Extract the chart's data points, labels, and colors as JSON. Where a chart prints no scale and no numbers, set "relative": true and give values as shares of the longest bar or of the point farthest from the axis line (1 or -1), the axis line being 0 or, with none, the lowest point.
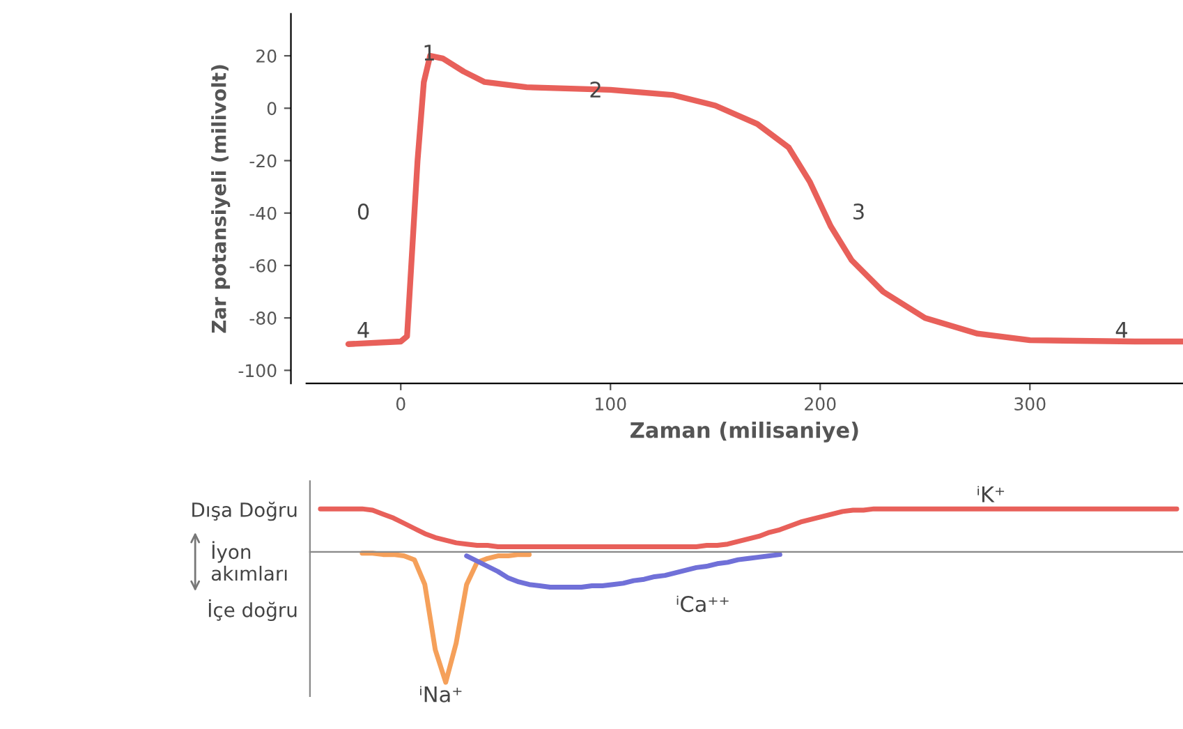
{
  "chart_data": [
    {
      "type": "line",
      "ylabel": "Zar potansiyeli (milivolt)",
      "xlabel": "Zaman (milisaniye)",
      "xlim": [
        -45,
        373
      ],
      "ylim": [
        -105,
        36
      ],
      "xticks": [
        0,
        100,
        200,
        300
      ],
      "yticks": [
        20,
        0,
        -20,
        -40,
        -60,
        -80,
        -100
      ],
      "grid": false,
      "legend": false,
      "series": [
        {
          "color": "#e8605a",
          "x": [
            -25,
            0,
            3,
            5,
            8,
            11,
            14,
            20,
            30,
            40,
            60,
            100,
            130,
            150,
            170,
            185,
            195,
            205,
            215,
            230,
            250,
            275,
            300,
            350,
            373
          ],
          "values": [
            -90,
            -89,
            -87,
            -60,
            -20,
            10,
            20,
            19,
            14,
            10,
            8,
            7,
            5,
            1,
            -6,
            -15,
            -28,
            -45,
            -58,
            -70,
            -80,
            -86,
            -88.5,
            -89,
            -89
          ]
        }
      ],
      "annotations": [
        "0",
        "1",
        "2",
        "3",
        "4",
        "4"
      ]
    },
    {
      "type": "line",
      "relative": true,
      "legend": false,
      "categories": [
        null,
        null,
        null,
        null,
        null,
        null,
        null,
        null,
        null,
        null,
        null,
        null,
        null,
        null,
        null,
        null,
        null,
        null,
        null,
        null,
        null,
        null,
        null,
        null,
        null,
        null,
        null,
        null,
        null,
        null,
        null,
        null,
        null,
        null,
        null,
        null,
        null,
        null,
        null,
        null,
        null,
        null,
        null,
        null,
        null,
        null,
        null,
        null,
        null,
        null,
        null,
        null,
        null,
        null,
        null,
        null,
        null,
        null,
        null,
        null,
        null,
        null,
        null,
        null,
        null,
        null,
        null,
        null,
        null,
        null,
        null,
        null,
        null,
        null,
        null,
        null,
        null,
        null,
        null,
        null,
        null,
        null,
        null
      ],
      "series": [
        {
          "name": "ⁱK⁺",
          "color": "#e8605a",
          "values": [
            0.33,
            0.33,
            0.33,
            0.33,
            0.33,
            0.32,
            0.29,
            0.26,
            0.22,
            0.18,
            0.14,
            0.11,
            0.09,
            0.07,
            0.06,
            0.05,
            0.05,
            0.04,
            0.04,
            0.04,
            0.04,
            0.04,
            0.04,
            0.04,
            0.04,
            0.04,
            0.04,
            0.04,
            0.04,
            0.04,
            0.04,
            0.04,
            0.04,
            0.04,
            0.04,
            0.04,
            0.04,
            0.05,
            0.05,
            0.06,
            0.08,
            0.1,
            0.12,
            0.15,
            0.17,
            0.2,
            0.23,
            0.25,
            0.27,
            0.29,
            0.31,
            0.32,
            0.32,
            0.33,
            0.33,
            0.33,
            0.33,
            0.33,
            0.33,
            0.33,
            0.33,
            0.33,
            0.33,
            0.33,
            0.33,
            0.33,
            0.33,
            0.33,
            0.33,
            0.33,
            0.33,
            0.33,
            0.33,
            0.33,
            0.33,
            0.33,
            0.33,
            0.33,
            0.33,
            0.33,
            0.33,
            0.33,
            0.33
          ]
        },
        {
          "name": "ⁱNa⁺",
          "color": "#f5a05a",
          "values": [
            null,
            null,
            null,
            null,
            -0.01,
            -0.01,
            -0.02,
            -0.02,
            -0.03,
            -0.06,
            -0.25,
            -0.75,
            -1,
            -0.7,
            -0.25,
            -0.08,
            -0.05,
            -0.03,
            -0.03,
            -0.02,
            -0.02,
            null,
            null,
            null,
            null,
            null,
            null,
            null,
            null,
            null,
            null,
            null,
            null,
            null,
            null,
            null,
            null,
            null,
            null,
            null,
            null,
            null,
            null,
            null,
            null,
            null,
            null,
            null,
            null,
            null,
            null,
            null,
            null,
            null,
            null,
            null,
            null,
            null,
            null,
            null,
            null,
            null,
            null,
            null,
            null,
            null,
            null,
            null,
            null,
            null,
            null,
            null,
            null,
            null,
            null,
            null,
            null,
            null,
            null,
            null,
            null,
            null,
            null
          ]
        },
        {
          "name": "ⁱCa⁺⁺",
          "color": "#7070d8",
          "values": [
            null,
            null,
            null,
            null,
            null,
            null,
            null,
            null,
            null,
            null,
            null,
            null,
            null,
            null,
            -0.03,
            -0.07,
            -0.11,
            -0.15,
            -0.2,
            -0.23,
            -0.25,
            -0.26,
            -0.27,
            -0.27,
            -0.27,
            -0.27,
            -0.26,
            -0.26,
            -0.25,
            -0.24,
            -0.22,
            -0.21,
            -0.19,
            -0.18,
            -0.16,
            -0.14,
            -0.12,
            -0.11,
            -0.09,
            -0.08,
            -0.06,
            -0.05,
            -0.04,
            -0.03,
            -0.02,
            null,
            null,
            null,
            null,
            null,
            null,
            null,
            null,
            null,
            null,
            null,
            null,
            null,
            null,
            null,
            null,
            null,
            null,
            null,
            null,
            null,
            null,
            null,
            null,
            null,
            null,
            null,
            null,
            null,
            null,
            null,
            null,
            null,
            null,
            null,
            null,
            null,
            null
          ]
        }
      ],
      "annotations": [
        "Dışa Doğru",
        "İyon\nakımları",
        "İçe doğru"
      ]
    }
  ]
}
